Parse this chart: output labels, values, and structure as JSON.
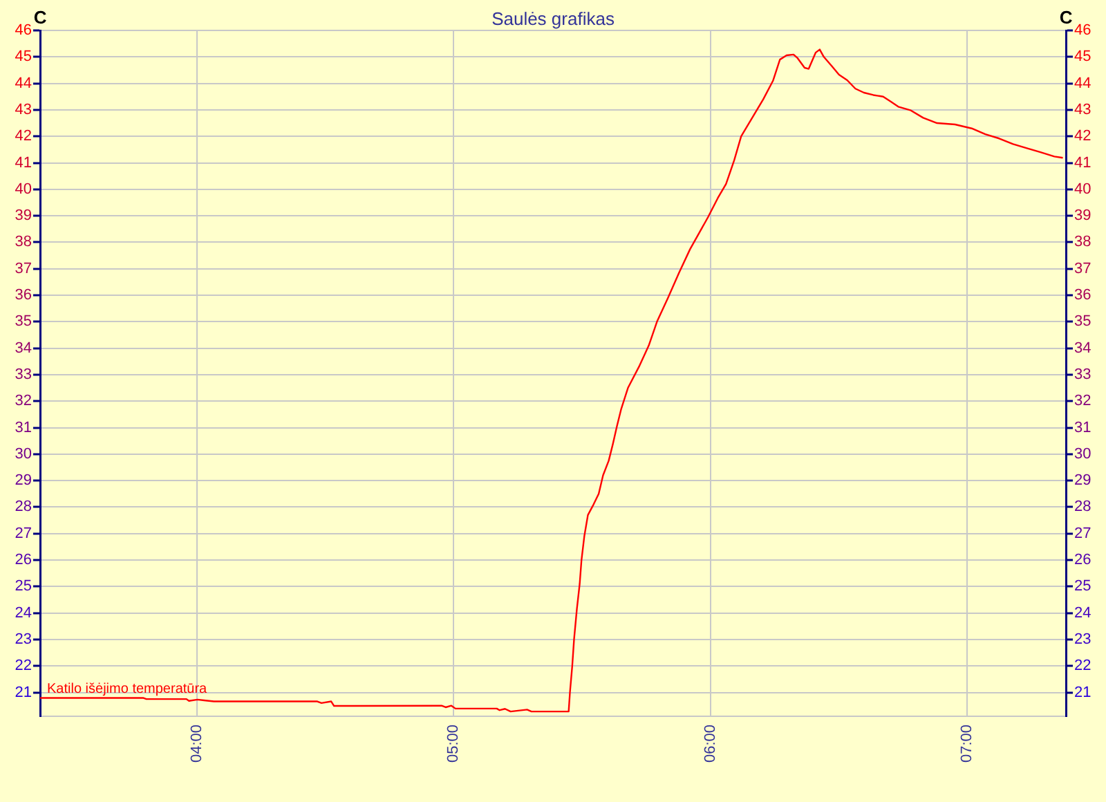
{
  "chart_data": {
    "type": "line",
    "title": "Saulės grafikas",
    "ylabel": "C",
    "y2label": "C",
    "x": [
      3.389,
      3.792,
      3.803,
      3.959,
      3.969,
      4.002,
      4.028,
      4.066,
      4.469,
      4.485,
      4.523,
      4.534,
      4.953,
      4.969,
      4.991,
      5.007,
      5.168,
      5.179,
      5.2,
      5.222,
      5.286,
      5.303,
      5.448,
      5.453,
      5.462,
      5.469,
      5.48,
      5.491,
      5.498,
      5.509,
      5.523,
      5.545,
      5.565,
      5.582,
      5.604,
      5.62,
      5.636,
      5.652,
      5.679,
      5.722,
      5.76,
      5.792,
      5.835,
      5.878,
      5.921,
      5.991,
      6.029,
      6.061,
      6.093,
      6.12,
      6.163,
      6.206,
      6.244,
      6.271,
      6.297,
      6.324,
      6.34,
      6.367,
      6.383,
      6.394,
      6.41,
      6.426,
      6.442,
      6.474,
      6.501,
      6.533,
      6.565,
      6.598,
      6.635,
      6.673,
      6.7,
      6.732,
      6.781,
      6.829,
      6.883,
      6.953,
      7.018,
      7.071,
      7.125,
      7.179,
      7.233,
      7.286,
      7.34,
      7.373
    ],
    "series": [
      {
        "name": "Katilo išėjimo temperatūra",
        "color": "#ff0000",
        "values": [
          20.79,
          20.79,
          20.75,
          20.75,
          20.68,
          20.73,
          20.7,
          20.66,
          20.66,
          20.6,
          20.66,
          20.49,
          20.5,
          20.44,
          20.5,
          20.39,
          20.39,
          20.33,
          20.38,
          20.28,
          20.35,
          20.28,
          20.28,
          21.0,
          22.0,
          23.0,
          24.15,
          25.1,
          26.0,
          26.9,
          27.7,
          28.1,
          28.5,
          29.2,
          29.75,
          30.37,
          31.05,
          31.68,
          32.5,
          33.3,
          34.1,
          35.0,
          35.9,
          36.85,
          37.74,
          38.95,
          39.67,
          40.2,
          41.1,
          42.0,
          42.7,
          43.4,
          44.1,
          44.9,
          45.06,
          45.09,
          44.95,
          44.59,
          44.55,
          44.8,
          45.16,
          45.28,
          45.0,
          44.64,
          44.33,
          44.12,
          43.8,
          43.65,
          43.56,
          43.5,
          43.33,
          43.12,
          42.98,
          42.7,
          42.5,
          42.45,
          42.3,
          42.08,
          41.92,
          41.71,
          41.55,
          41.4,
          41.24,
          41.19
        ]
      }
    ],
    "xlim": [
      3.389,
      7.385
    ],
    "xticks": [
      {
        "value": 4,
        "label": "04:00"
      },
      {
        "value": 5,
        "label": "05:00"
      },
      {
        "value": 6,
        "label": "06:00"
      },
      {
        "value": 7,
        "label": "07:00"
      }
    ],
    "ylim": [
      20.1,
      46
    ],
    "yticks": [
      21,
      22,
      23,
      24,
      25,
      26,
      27,
      28,
      29,
      30,
      31,
      32,
      33,
      34,
      35,
      36,
      37,
      38,
      39,
      40,
      41,
      42,
      43,
      44,
      45,
      46
    ],
    "y2lim": [
      20.1,
      46
    ],
    "y2ticks": [
      21,
      22,
      23,
      24,
      25,
      26,
      27,
      28,
      29,
      30,
      31,
      32,
      33,
      34,
      35,
      36,
      37,
      38,
      39,
      40,
      41,
      42,
      43,
      44,
      45,
      46
    ],
    "grid": true,
    "legend": false,
    "marker": "none",
    "line_style": "solid"
  }
}
